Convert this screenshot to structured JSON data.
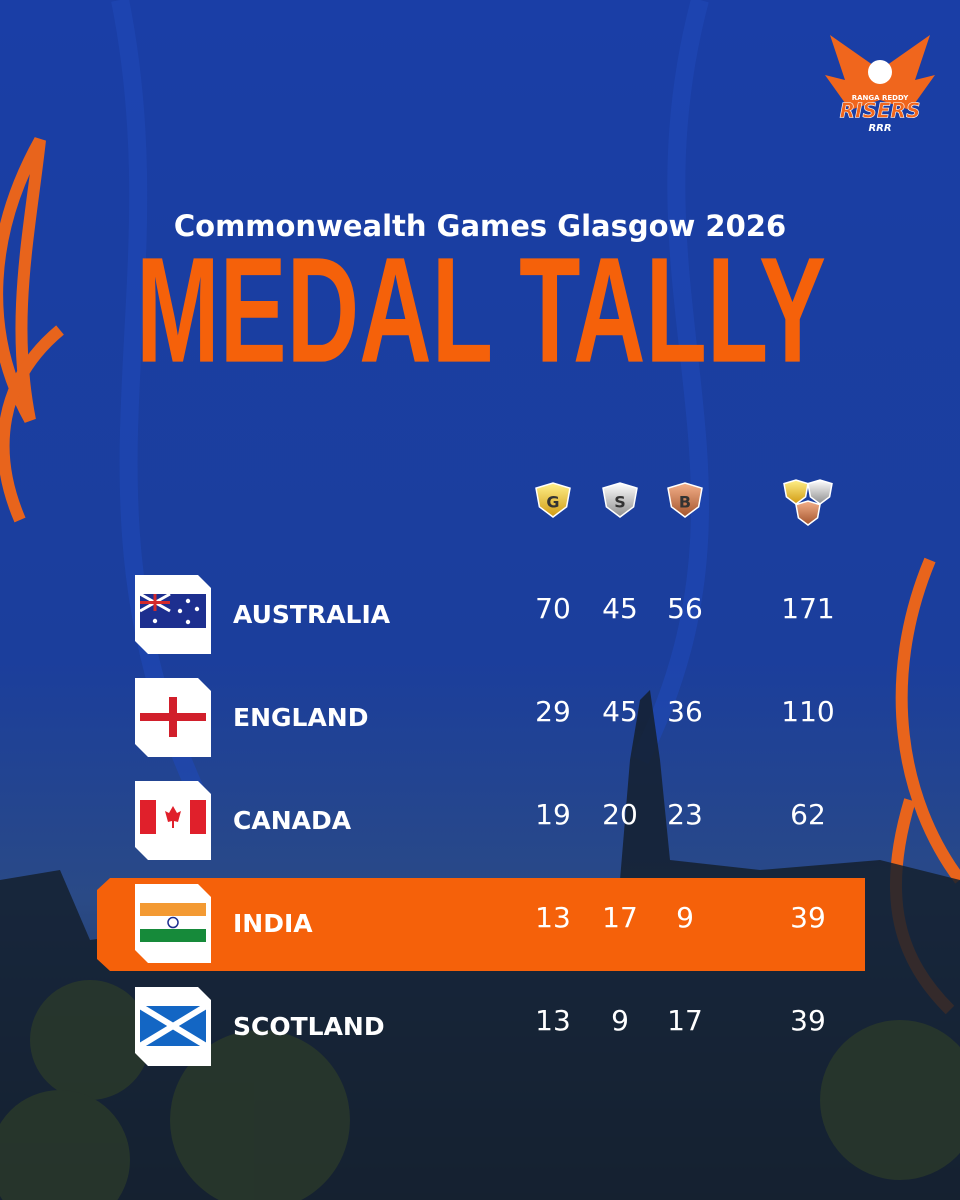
{
  "logo": {
    "top": "RANGA REDDY",
    "name": "RISERS",
    "abbr": "RRR"
  },
  "header": {
    "subtitle": "Commonwealth Games Glasgow 2026",
    "title": "MEDAL TALLY"
  },
  "table": {
    "columns": [
      "G",
      "S",
      "B"
    ],
    "rows": [
      {
        "country": "AUSTRALIA",
        "gold": 70,
        "silver": 45,
        "bronze": 56,
        "total": 171
      },
      {
        "country": "ENGLAND",
        "gold": 29,
        "silver": 45,
        "bronze": 36,
        "total": 110
      },
      {
        "country": "CANADA",
        "gold": 19,
        "silver": 20,
        "bronze": 23,
        "total": 62
      },
      {
        "country": "INDIA",
        "gold": 13,
        "silver": 17,
        "bronze": 9,
        "total": 39,
        "highlighted": true
      },
      {
        "country": "SCOTLAND",
        "gold": 13,
        "silver": 9,
        "bronze": 17,
        "total": 39
      }
    ]
  }
}
